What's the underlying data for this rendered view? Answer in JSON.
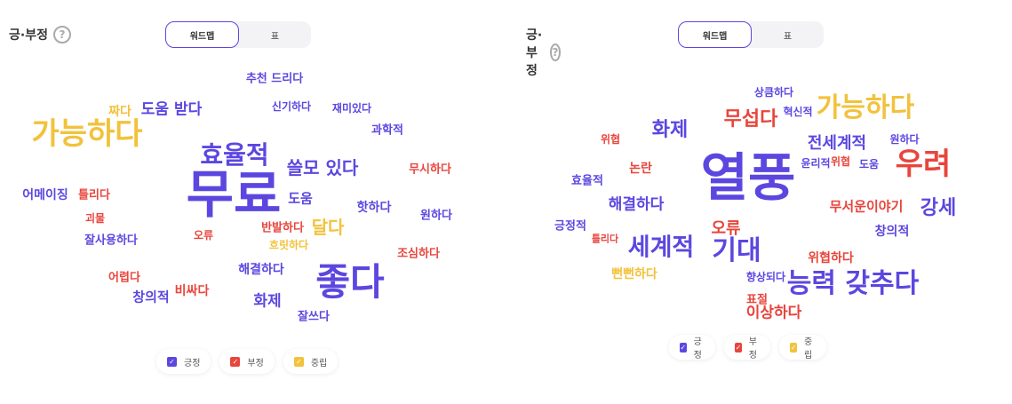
{
  "colors": {
    "positive": "#5b47e0",
    "negative": "#e8453c",
    "neutral": "#f2c23c"
  },
  "panels": [
    {
      "title": "긍·부정",
      "help_icon": "?",
      "tabs": [
        {
          "label": "워드맵",
          "active": true
        },
        {
          "label": "표",
          "active": false
        }
      ],
      "legend": [
        {
          "label": "긍정",
          "sentiment": "positive",
          "checked": true
        },
        {
          "label": "부정",
          "sentiment": "negative",
          "checked": true
        },
        {
          "label": "중립",
          "sentiment": "neutral",
          "checked": true
        }
      ],
      "words": [
        {
          "text": "추천 드리다",
          "sentiment": "positive"
        },
        {
          "text": "짜다",
          "sentiment": "neutral"
        },
        {
          "text": "도움 받다",
          "sentiment": "positive"
        },
        {
          "text": "신기하다",
          "sentiment": "positive"
        },
        {
          "text": "재미있다",
          "sentiment": "positive"
        },
        {
          "text": "가능하다",
          "sentiment": "neutral"
        },
        {
          "text": "과학적",
          "sentiment": "positive"
        },
        {
          "text": "효율적",
          "sentiment": "positive"
        },
        {
          "text": "쓸모 있다",
          "sentiment": "positive"
        },
        {
          "text": "무시하다",
          "sentiment": "negative"
        },
        {
          "text": "무료",
          "sentiment": "positive"
        },
        {
          "text": "어메이징",
          "sentiment": "positive"
        },
        {
          "text": "틀리다",
          "sentiment": "negative"
        },
        {
          "text": "도움",
          "sentiment": "positive"
        },
        {
          "text": "핫하다",
          "sentiment": "positive"
        },
        {
          "text": "원하다",
          "sentiment": "positive"
        },
        {
          "text": "괴물",
          "sentiment": "negative"
        },
        {
          "text": "반발하다",
          "sentiment": "negative"
        },
        {
          "text": "달다",
          "sentiment": "neutral"
        },
        {
          "text": "오류",
          "sentiment": "negative"
        },
        {
          "text": "잘사용하다",
          "sentiment": "positive"
        },
        {
          "text": "흐릿하다",
          "sentiment": "neutral"
        },
        {
          "text": "조심하다",
          "sentiment": "negative"
        },
        {
          "text": "해결하다",
          "sentiment": "positive"
        },
        {
          "text": "좋다",
          "sentiment": "positive"
        },
        {
          "text": "어렵다",
          "sentiment": "negative"
        },
        {
          "text": "비싸다",
          "sentiment": "negative"
        },
        {
          "text": "창의적",
          "sentiment": "positive"
        },
        {
          "text": "화제",
          "sentiment": "positive"
        },
        {
          "text": "잘쓰다",
          "sentiment": "positive"
        }
      ]
    },
    {
      "title": "긍·부정",
      "help_icon": "?",
      "tabs": [
        {
          "label": "워드맵",
          "active": true
        },
        {
          "label": "표",
          "active": false
        }
      ],
      "legend": [
        {
          "label": "긍정",
          "sentiment": "positive",
          "checked": true
        },
        {
          "label": "부정",
          "sentiment": "negative",
          "checked": true
        },
        {
          "label": "중립",
          "sentiment": "neutral",
          "checked": true
        }
      ],
      "words": [
        {
          "text": "상큼하다",
          "sentiment": "positive"
        },
        {
          "text": "혁신적",
          "sentiment": "positive"
        },
        {
          "text": "가능하다",
          "sentiment": "neutral"
        },
        {
          "text": "무섭다",
          "sentiment": "negative"
        },
        {
          "text": "화제",
          "sentiment": "positive"
        },
        {
          "text": "위협",
          "sentiment": "negative"
        },
        {
          "text": "전세계적",
          "sentiment": "positive"
        },
        {
          "text": "원하다",
          "sentiment": "positive"
        },
        {
          "text": "우려",
          "sentiment": "negative"
        },
        {
          "text": "윤리적",
          "sentiment": "positive"
        },
        {
          "text": "위협",
          "sentiment": "negative"
        },
        {
          "text": "도움",
          "sentiment": "positive"
        },
        {
          "text": "논란",
          "sentiment": "negative"
        },
        {
          "text": "효율적",
          "sentiment": "positive"
        },
        {
          "text": "열풍",
          "sentiment": "positive"
        },
        {
          "text": "해결하다",
          "sentiment": "positive"
        },
        {
          "text": "무서운이야기",
          "sentiment": "negative"
        },
        {
          "text": "강세",
          "sentiment": "positive"
        },
        {
          "text": "긍정적",
          "sentiment": "positive"
        },
        {
          "text": "오류",
          "sentiment": "negative"
        },
        {
          "text": "틀리다",
          "sentiment": "negative"
        },
        {
          "text": "세계적",
          "sentiment": "positive"
        },
        {
          "text": "기대",
          "sentiment": "positive"
        },
        {
          "text": "창의적",
          "sentiment": "positive"
        },
        {
          "text": "위협하다",
          "sentiment": "negative"
        },
        {
          "text": "뻔뻔하다",
          "sentiment": "neutral"
        },
        {
          "text": "향상되다",
          "sentiment": "positive"
        },
        {
          "text": "능력 갖추다",
          "sentiment": "positive"
        },
        {
          "text": "표절",
          "sentiment": "negative"
        },
        {
          "text": "이상하다",
          "sentiment": "negative"
        }
      ]
    }
  ]
}
